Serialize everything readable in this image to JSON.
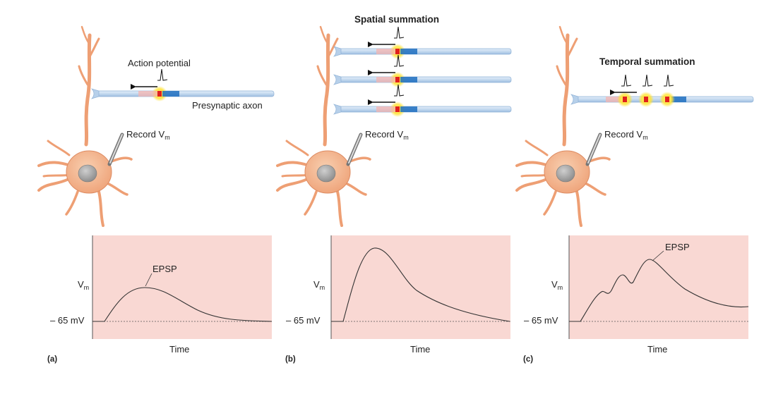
{
  "panels": [
    {
      "letter": "(a)",
      "title": "",
      "axon_label": "Presynaptic axon",
      "ap_label": "Action potential",
      "record_label": "Record V",
      "record_sub": "m",
      "y_label": "V",
      "y_sub": "m",
      "baseline_label": "– 65 mV",
      "x_label": "Time",
      "curve_label": "EPSP"
    },
    {
      "letter": "(b)",
      "title": "Spatial summation",
      "record_label": "Record V",
      "record_sub": "m",
      "y_label": "V",
      "y_sub": "m",
      "baseline_label": "– 65 mV",
      "x_label": "Time"
    },
    {
      "letter": "(c)",
      "title": "Temporal summation",
      "record_label": "Record V",
      "record_sub": "m",
      "y_label": "V",
      "y_sub": "m",
      "baseline_label": "– 65 mV",
      "x_label": "Time",
      "curve_label": "EPSP"
    }
  ],
  "colors": {
    "graph_bg": "#f9d8d3",
    "neuron_fill": "#f2b48c",
    "neuron_stroke": "#d98a62",
    "nucleus": "#9a9a9a",
    "axon_fill": "#c9dcf0",
    "axon_stroke": "#8fb1d6",
    "ap_blue": "#1f6fc0",
    "ap_red": "#e0201c",
    "ap_glow": "#ffe23a"
  }
}
